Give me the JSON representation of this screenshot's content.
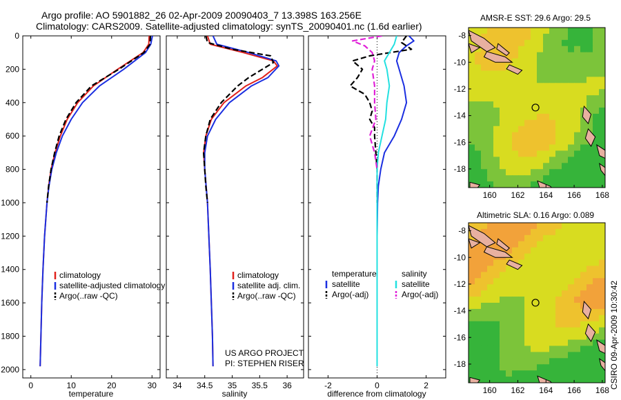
{
  "header": {
    "line1": "Argo profile: AO 5901882_26 02-Apr-2009 20090403_7 13.398S 163.256E",
    "line2": "Climatology: CARS2009. Satellite-adjusted climatology: synTS_20090401.nc (1.6d earlier)"
  },
  "side_stamp": "CSIRO 09-Apr-2009 10:30:42",
  "colors": {
    "climatology": "#e0201b",
    "satellite": "#1a2ee0",
    "argo": "#000000",
    "sat_salinity": "#22e0e0",
    "argo_salinity": "#e020d8",
    "map_land": "#e8b0a0",
    "map_green": "#36b43a",
    "map_yellow": "#d8dc20",
    "map_orange": "#f2a23a"
  },
  "chart_data": [
    {
      "type": "line",
      "panel": "temperature",
      "xlabel": "temperature",
      "ylabel": "",
      "xlim": [
        -2,
        32
      ],
      "ylim": [
        0,
        2050
      ],
      "y_reversed": true,
      "xticks": [
        "0",
        "10",
        "20",
        "30"
      ],
      "yticks": [
        "0",
        "200",
        "400",
        "600",
        "800",
        "1000",
        "1200",
        "1400",
        "1600",
        "1800",
        "2000"
      ],
      "legend": [
        "climatology",
        "satellite-adjusted climatology",
        "Argo(..raw -QC)"
      ],
      "series": [
        {
          "name": "climatology",
          "y": [
            0,
            50,
            100,
            200,
            300,
            400,
            500,
            600,
            700,
            800,
            900,
            1000,
            1200,
            1400,
            1600,
            1800,
            1980
          ],
          "values": [
            29.3,
            29.2,
            27.8,
            21.5,
            15.5,
            11.6,
            9.0,
            7.3,
            6.0,
            5.0,
            4.4,
            4.0,
            3.4,
            3.0,
            2.7,
            2.5,
            2.3
          ]
        },
        {
          "name": "satellite-adjusted climatology",
          "y": [
            0,
            50,
            100,
            200,
            300,
            400,
            500,
            600,
            700,
            800,
            900,
            1000,
            1200,
            1400,
            1600,
            1800,
            1980
          ],
          "values": [
            30.1,
            29.7,
            28.4,
            23.0,
            17.0,
            12.8,
            10.0,
            7.8,
            6.3,
            5.2,
            4.5,
            4.0,
            3.4,
            3.0,
            2.7,
            2.5,
            2.3
          ]
        },
        {
          "name": "Argo(..raw -QC)",
          "y": [
            0,
            50,
            100,
            200,
            300,
            400,
            500,
            600,
            700,
            800,
            900,
            1000
          ],
          "values": [
            29.6,
            29.5,
            28.0,
            21.8,
            15.0,
            11.2,
            8.7,
            7.0,
            5.9,
            5.0,
            4.4,
            4.0
          ]
        }
      ]
    },
    {
      "type": "line",
      "panel": "salinity",
      "xlabel": "salinity",
      "xlim": [
        33.8,
        36.3
      ],
      "ylim": [
        0,
        2050
      ],
      "y_reversed": true,
      "xticks": [
        "34",
        "34.5",
        "35",
        "35.5",
        "36"
      ],
      "legend": [
        "climatology",
        "satellite adj. clim.",
        "Argo(..raw -QC)"
      ],
      "annotations": [
        "US ARGO PROJECT",
        "PI: STEPHEN RISER"
      ],
      "series": [
        {
          "name": "climatology",
          "y": [
            0,
            50,
            100,
            150,
            180,
            250,
            300,
            400,
            500,
            600,
            700,
            800,
            1000,
            1400,
            1800,
            1980
          ],
          "values": [
            34.55,
            34.6,
            35.2,
            35.75,
            35.82,
            35.55,
            35.25,
            34.85,
            34.62,
            34.52,
            34.48,
            34.5,
            34.55,
            34.6,
            34.64,
            34.65
          ]
        },
        {
          "name": "satellite adj. clim.",
          "y": [
            0,
            50,
            100,
            150,
            180,
            250,
            300,
            400,
            500,
            600,
            700,
            800,
            1000,
            1400,
            1800,
            1980
          ],
          "values": [
            34.65,
            34.72,
            35.3,
            35.8,
            35.85,
            35.65,
            35.35,
            34.95,
            34.7,
            34.55,
            34.5,
            34.5,
            34.55,
            34.6,
            34.64,
            34.65
          ]
        },
        {
          "name": "Argo(..raw -QC)",
          "y": [
            0,
            40,
            80,
            120,
            160,
            200,
            250,
            300,
            400,
            500,
            600,
            700,
            800,
            900,
            1000
          ],
          "values": [
            34.52,
            34.55,
            35.0,
            35.7,
            35.75,
            35.55,
            35.3,
            35.1,
            34.8,
            34.6,
            34.52,
            34.48,
            34.5,
            34.52,
            34.55
          ]
        }
      ]
    },
    {
      "type": "line",
      "panel": "difference",
      "xlabel": "difference from climatology",
      "xlim": [
        -2.8,
        2.8
      ],
      "ylim": [
        0,
        2050
      ],
      "y_reversed": true,
      "xticks": [
        "-2",
        "0",
        "2"
      ],
      "legend": {
        "temperature_header": "temperature",
        "salinity_header": "salinity",
        "temperature": [
          "satellite",
          "Argo(-adj)"
        ],
        "salinity": [
          "satellite",
          "Argo(-adj)"
        ]
      },
      "series": [
        {
          "name": "temperature satellite",
          "y": [
            0,
            30,
            60,
            100,
            150,
            200,
            300,
            400,
            500,
            600,
            700,
            800,
            900,
            1000,
            1200,
            1600,
            1980
          ],
          "values": [
            1.3,
            1.5,
            1.2,
            0.9,
            0.8,
            0.9,
            1.1,
            1.2,
            1.0,
            0.7,
            0.3,
            0.15,
            0.05,
            0.02,
            0.0,
            0.0,
            0.0
          ]
        },
        {
          "name": "temperature Argo(-adj)",
          "y": [
            0,
            40,
            80,
            120,
            150,
            200,
            250,
            300,
            350,
            400,
            450,
            500,
            550,
            600,
            700,
            800,
            900,
            1000
          ],
          "values": [
            1.2,
            1.0,
            1.4,
            -0.3,
            -1.0,
            -0.6,
            -0.8,
            -1.1,
            -0.5,
            -0.3,
            -0.2,
            -0.3,
            -0.1,
            -0.1,
            -0.05,
            0.0,
            0.0,
            0.0
          ]
        },
        {
          "name": "salinity satellite",
          "y": [
            0,
            50,
            100,
            150,
            200,
            300,
            400,
            500,
            600,
            700,
            800,
            1000,
            1400,
            1980
          ],
          "values": [
            0.8,
            0.7,
            0.5,
            0.3,
            0.4,
            0.5,
            0.4,
            0.35,
            0.2,
            0.05,
            0.0,
            0.0,
            0.0,
            0.0
          ]
        },
        {
          "name": "salinity Argo(-adj)",
          "y": [
            0,
            30,
            60,
            100,
            150,
            200,
            300,
            400,
            500,
            600,
            700,
            800
          ],
          "values": [
            0.2,
            -1.0,
            -0.5,
            -0.2,
            -0.1,
            -0.2,
            -0.1,
            -0.1,
            -0.05,
            -0.3,
            -0.1,
            0.0
          ]
        }
      ]
    },
    {
      "type": "heatmap",
      "panel": "sst_map",
      "title": "AMSR-E SST: 29.6  Argo: 29.5",
      "xticks": [
        "160",
        "162",
        "164",
        "166",
        "168"
      ],
      "yticks": [
        "-8",
        "-10",
        "-12",
        "-14",
        "-16",
        "-18"
      ],
      "xlim": [
        158.5,
        168.2
      ],
      "ylim": [
        -19.4,
        -7.4
      ],
      "marker": {
        "lon": 163.256,
        "lat": -13.398
      }
    },
    {
      "type": "heatmap",
      "panel": "sla_map",
      "title": "Altimetric SLA: 0.16  Argo: 0.089",
      "xticks": [
        "160",
        "162",
        "164",
        "166",
        "168"
      ],
      "yticks": [
        "-8",
        "-10",
        "-12",
        "-14",
        "-16",
        "-18"
      ],
      "xlim": [
        158.5,
        168.2
      ],
      "ylim": [
        -19.4,
        -7.4
      ],
      "marker": {
        "lon": 163.256,
        "lat": -13.398
      }
    }
  ]
}
